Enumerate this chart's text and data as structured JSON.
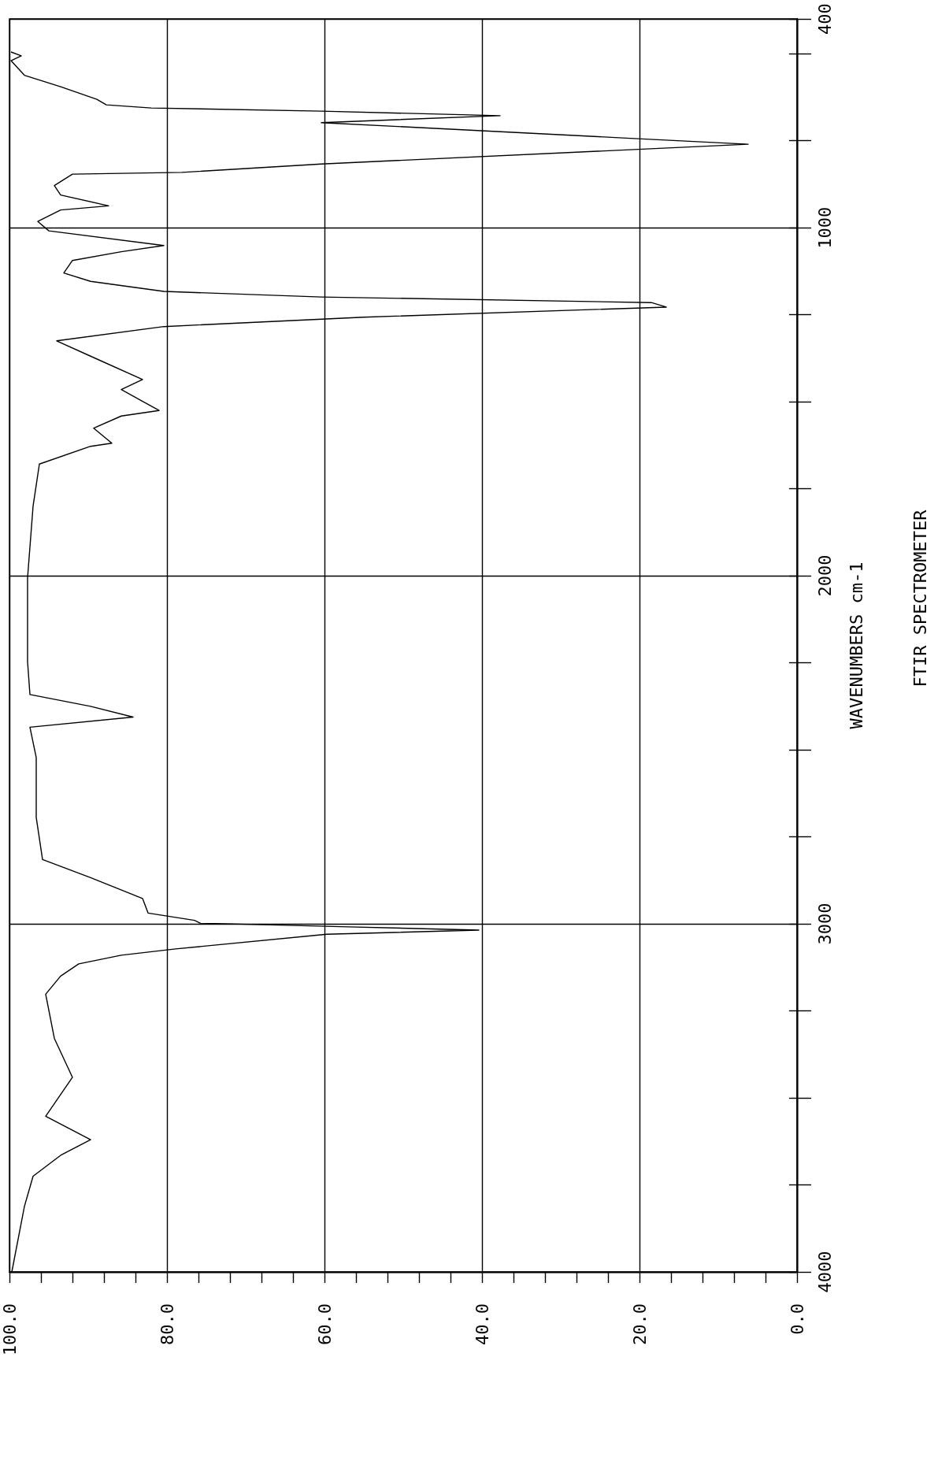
{
  "chart_data": {
    "type": "line",
    "ylabel": "WAVENUMBERS cm-1",
    "annotations": [
      "FTIR SPECTROMETER"
    ],
    "ylim": [
      4000,
      400
    ],
    "yticks": [
      4000,
      {
        "value": 3750,
        "label": null
      },
      {
        "value": 3500,
        "label": null
      },
      {
        "value": 3250,
        "label": null
      },
      3000,
      {
        "value": 2750,
        "label": null
      },
      {
        "value": 2500,
        "label": null
      },
      {
        "value": 2250,
        "label": null
      },
      2000,
      {
        "value": 1750,
        "label": null
      },
      {
        "value": 1500,
        "label": null
      },
      {
        "value": 1250,
        "label": null
      },
      1000,
      {
        "value": 750,
        "label": null
      },
      {
        "value": 500,
        "label": null
      },
      400
    ],
    "xlim": [
      100,
      0
    ],
    "xticks": [
      {
        "value": 100,
        "label": "100.0"
      },
      {
        "value": 96,
        "label": null
      },
      {
        "value": 92,
        "label": null
      },
      {
        "value": 88,
        "label": null
      },
      {
        "value": 84,
        "label": null
      },
      {
        "value": 80,
        "label": "80.0"
      },
      {
        "value": 76,
        "label": null
      },
      {
        "value": 72,
        "label": null
      },
      {
        "value": 68,
        "label": null
      },
      {
        "value": 64,
        "label": null
      },
      {
        "value": 60,
        "label": "60.0"
      },
      {
        "value": 56,
        "label": null
      },
      {
        "value": 52,
        "label": null
      },
      {
        "value": 48,
        "label": null
      },
      {
        "value": 44,
        "label": null
      },
      {
        "value": 40,
        "label": "40.0"
      },
      {
        "value": 36,
        "label": null
      },
      {
        "value": 32,
        "label": null
      },
      {
        "value": 28,
        "label": null
      },
      {
        "value": 24,
        "label": null
      },
      {
        "value": 20,
        "label": "20.0"
      },
      {
        "value": 16,
        "label": null
      },
      {
        "value": 12,
        "label": null
      },
      {
        "value": 8,
        "label": null
      },
      {
        "value": 4,
        "label": null
      },
      {
        "value": 0,
        "label": "0.0"
      }
    ],
    "grid": true,
    "series": [
      {
        "color": "#000000",
        "values": [
          4000,
          3812,
          3725,
          3665,
          3620,
          3553,
          3441,
          3329,
          3202,
          3150,
          3115,
          3090,
          3072,
          3030,
          3018,
          3008,
          2998,
          2990,
          2969,
          2927,
          2867,
          2815,
          2694,
          2522,
          2435,
          2406,
          2375,
          2341,
          2247,
          2006,
          1800,
          1679,
          1628,
          1619,
          1576,
          1541,
          1525,
          1465,
          1436,
          1369,
          1325,
          1284,
          1257,
          1228,
          1215,
          1199,
          1183,
          1154,
          1130,
          1094,
          1069,
          1051,
          1009,
          982,
          949,
          937,
          906,
          879,
          846,
          841,
          817,
          760,
          743,
          698,
          678,
          665,
          656,
          647,
          631,
          595,
          562,
          520,
          506,
          495
        ],
        "x": [
          99.7,
          98.1,
          97.0,
          93.5,
          89.7,
          95.4,
          92.0,
          94.3,
          95.4,
          93.5,
          91.2,
          85.8,
          78.9,
          59.7,
          40.4,
          58.0,
          75.8,
          76.5,
          82.4,
          83.1,
          89.7,
          95.8,
          96.6,
          96.6,
          97.4,
          84.3,
          89.7,
          97.4,
          97.7,
          97.7,
          97.0,
          96.2,
          89.7,
          87.0,
          89.3,
          85.8,
          81.0,
          85.8,
          83.1,
          89.7,
          94.0,
          80.4,
          55.0,
          16.6,
          18.5,
          60.4,
          80.4,
          89.7,
          93.1,
          92.0,
          85.8,
          80.4,
          95.0,
          96.4,
          93.5,
          87.4,
          93.5,
          94.3,
          92.0,
          78.1,
          60.4,
          6.2,
          21.2,
          60.4,
          37.7,
          60.4,
          82.0,
          87.7,
          88.9,
          93.5,
          98.1,
          99.8,
          98.5,
          99.8
        ]
      }
    ]
  }
}
